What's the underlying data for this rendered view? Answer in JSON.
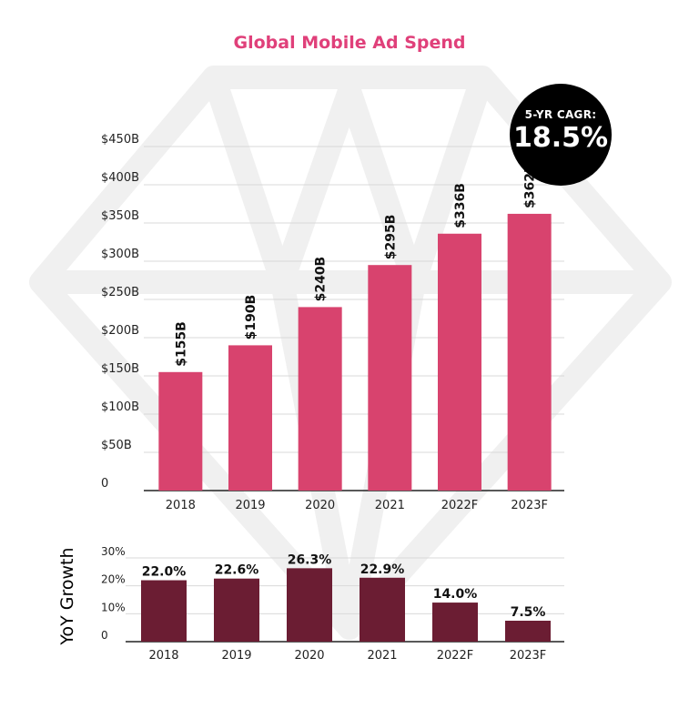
{
  "colors": {
    "main_bar": "#d8436e",
    "growth_bar": "#6b1d33",
    "title": "#e0407a",
    "badge_bg": "#000000",
    "badge_text": "#ffffff",
    "gridline": "#d9d9d9",
    "axis": "#222222",
    "watermark": "#f0f0f0"
  },
  "badge": {
    "label": "5-YR CAGR:",
    "value": "18.5%"
  },
  "yoy_axis_title": "YoY Growth",
  "chart_data": [
    {
      "type": "bar",
      "title": "Global Mobile Ad Spend",
      "categories": [
        "2018",
        "2019",
        "2020",
        "2021",
        "2022F",
        "2023F"
      ],
      "values": [
        155,
        190,
        240,
        295,
        336,
        362
      ],
      "data_labels": [
        "$155B",
        "$190B",
        "$240B",
        "$295B",
        "$336B",
        "$362B"
      ],
      "y_ticks": [
        "0",
        "$50B",
        "$100B",
        "$150B",
        "$200B",
        "$250B",
        "$300B",
        "$350B",
        "$400B",
        "$450B"
      ],
      "ylim": [
        0,
        450
      ],
      "grid": true
    },
    {
      "type": "bar",
      "ylabel": "YoY Growth",
      "categories": [
        "2018",
        "2019",
        "2020",
        "2021",
        "2022F",
        "2023F"
      ],
      "values": [
        22.0,
        22.6,
        26.3,
        22.9,
        14.0,
        7.5
      ],
      "data_labels": [
        "22.0%",
        "22.6%",
        "26.3%",
        "22.9%",
        "14.0%",
        "7.5%"
      ],
      "y_ticks": [
        "0",
        "10%",
        "20%",
        "30%"
      ],
      "ylim": [
        0,
        30
      ],
      "grid": true
    }
  ]
}
